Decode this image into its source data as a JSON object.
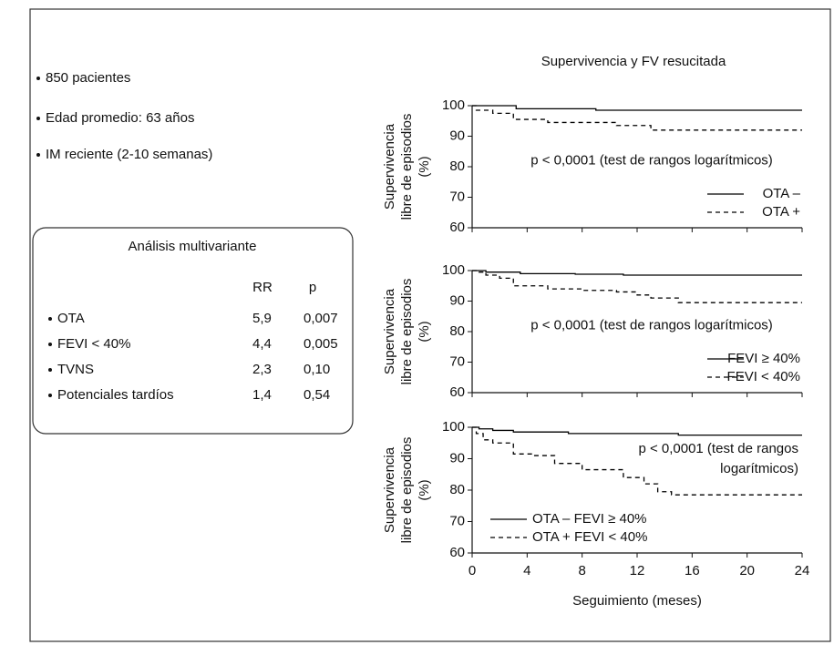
{
  "figure_title": "Supervivencia y FV resucitada",
  "bullets": [
    "850 pacientes",
    "Edad promedio: 63 años",
    "IM reciente (2-10 semanas)"
  ],
  "table": {
    "title": "Análisis multivariante",
    "header": [
      "RR",
      "p"
    ],
    "rows": [
      [
        "OTA",
        "5,9",
        "0,007"
      ],
      [
        "FEVI < 40%",
        "4,4",
        "0,005"
      ],
      [
        "TVNS",
        "2,3",
        "0,10"
      ],
      [
        "Potenciales tardíos",
        "1,4",
        "0,54"
      ]
    ]
  },
  "chart_data": [
    {
      "type": "line",
      "step": true,
      "ylabel": [
        "Supervivencia",
        "libre de episodios",
        "(%)"
      ],
      "annotation": [
        "p < 0,0001 (test de rangos logarítmicos)"
      ],
      "legend": "lower right",
      "xlim": [
        0,
        24
      ],
      "xticks": [
        0,
        4,
        8,
        12,
        16,
        20,
        24
      ],
      "ylim": [
        60,
        100
      ],
      "yticks": [
        60,
        70,
        80,
        90,
        100
      ],
      "series": [
        {
          "name": "OTA –",
          "style": "solid",
          "color": "#000000",
          "x": [
            0,
            3.2,
            9,
            24
          ],
          "values": [
            100,
            99,
            98.5,
            98.5
          ]
        },
        {
          "name": "OTA +",
          "style": "dashed",
          "color": "#000000",
          "x": [
            0,
            0.3,
            1.5,
            3,
            5.5,
            10.5,
            13,
            24
          ],
          "values": [
            100,
            98.5,
            97.5,
            95.5,
            94.5,
            93.5,
            92,
            92
          ]
        }
      ]
    },
    {
      "type": "line",
      "step": true,
      "ylabel": [
        "Supervivencia",
        "libre de episodios",
        "(%)"
      ],
      "annotation": [
        "p < 0,0001 (test de rangos logarítmicos)"
      ],
      "legend": "lower right",
      "xlim": [
        0,
        24
      ],
      "xticks": [
        0,
        4,
        8,
        12,
        16,
        20,
        24
      ],
      "ylim": [
        60,
        100
      ],
      "yticks": [
        60,
        70,
        80,
        90,
        100
      ],
      "series": [
        {
          "name": "FEVI ≥ 40%",
          "style": "solid",
          "color": "#000000",
          "x": [
            0,
            1,
            3.5,
            7.5,
            11,
            24
          ],
          "values": [
            100,
            99.5,
            99,
            98.8,
            98.5,
            98.5
          ]
        },
        {
          "name": "FEVI < 40%",
          "style": "dashed",
          "color": "#000000",
          "x": [
            0,
            0.5,
            1,
            2,
            3,
            5.5,
            8,
            10.5,
            12,
            13,
            15,
            24
          ],
          "values": [
            100,
            99.5,
            98.5,
            97.5,
            95,
            94,
            93.5,
            93,
            92,
            91,
            89.5,
            89.5
          ]
        }
      ]
    },
    {
      "type": "line",
      "step": true,
      "ylabel": [
        "Supervivencia",
        "libre de episodios",
        "(%)"
      ],
      "annotation": [
        "p < 0,0001  (test de rangos",
        "logarítmicos)"
      ],
      "legend": "lower left",
      "xlabel": "Seguimiento (meses)",
      "xlim": [
        0,
        24
      ],
      "xticks": [
        0,
        4,
        8,
        12,
        16,
        20,
        24
      ],
      "ylim": [
        60,
        100
      ],
      "yticks": [
        60,
        70,
        80,
        90,
        100
      ],
      "series": [
        {
          "name": "OTA – FEVI ≥ 40%",
          "style": "solid",
          "color": "#000000",
          "x": [
            0,
            0.5,
            1.5,
            3,
            7,
            15,
            24
          ],
          "values": [
            100,
            99.5,
            99,
            98.5,
            98,
            97.5,
            97.5
          ]
        },
        {
          "name": "OTA + FEVI < 40%",
          "style": "dashed",
          "color": "#000000",
          "x": [
            0,
            0.3,
            0.8,
            1.5,
            3,
            4.5,
            6,
            8,
            11,
            12.5,
            13.5,
            14.5,
            24
          ],
          "values": [
            100,
            98,
            96,
            95,
            91.5,
            91,
            88.5,
            86.5,
            84,
            82,
            79.5,
            78.5,
            78.5
          ]
        }
      ]
    }
  ]
}
